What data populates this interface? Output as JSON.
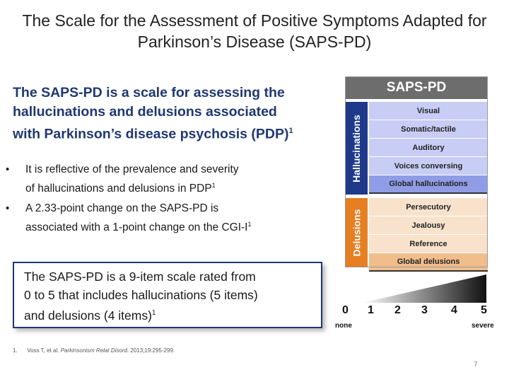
{
  "slide": {
    "title_line1": "The Scale for the Assessment of Positive Symptoms Adapted for",
    "title_line2": "Parkinson’s Disease (SAPS-PD)",
    "lead_line1": "The SAPS-PD is a scale for assessing the",
    "lead_line2": "hallucinations and delusions associated",
    "lead_line3": "with Parkinson’s disease psychosis (PDP)",
    "lead_ref": "1",
    "bullets": [
      {
        "line1": "It is reflective of the prevalence and severity",
        "line2": "of hallucinations and delusions in PDP",
        "ref": "1"
      },
      {
        "line1": "A 2.33-point change on the SAPS-PD is",
        "line2": "associated with a 1-point change on the CGI-I",
        "ref": "1"
      }
    ],
    "callout_line1": "The SAPS-PD is a 9-item scale rated from",
    "callout_line2": "0 to 5 that includes hallucinations (5 items)",
    "callout_line3": "and delusions (4 items)",
    "callout_ref": "1",
    "footnote_num": "1.",
    "footnote_authors": "Voss T, et al.",
    "footnote_journal": "Parkinsonism Relat Disord.",
    "footnote_citation": "2013;19:295-299.",
    "page_number": "7"
  },
  "saps_table": {
    "header": "SAPS-PD",
    "hallucinations_label": "Hallucinations",
    "delusions_label": "Delusions",
    "hallucination_items": [
      "Visual",
      "Somatic/tactile",
      "Auditory",
      "Voices conversing",
      "Global hallucinations"
    ],
    "delusion_items": [
      "Persecutory",
      "Jealousy",
      "Reference",
      "Global delusions"
    ],
    "colors": {
      "header": "#6d6d6d",
      "hallucinations": "#1f3a8a",
      "delusions": "#e67e22"
    }
  },
  "scale": {
    "values": [
      "0",
      "1",
      "2",
      "3",
      "4",
      "5"
    ],
    "min_label": "none",
    "max_label": "severe"
  }
}
